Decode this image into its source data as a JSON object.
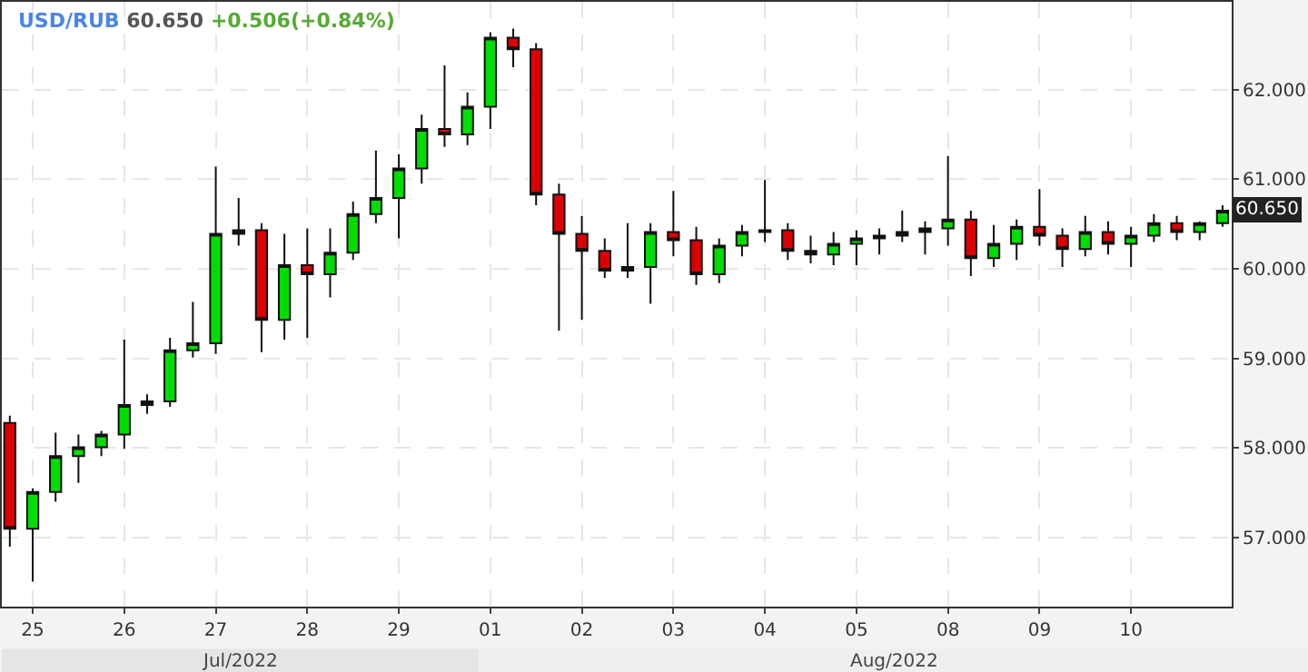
{
  "chart_data": {
    "type": "candlestick",
    "title": "USD/RUB 60.650 +0.506(+0.84%)",
    "categories": [
      null,
      "25",
      null,
      null,
      null,
      "26",
      null,
      null,
      null,
      "27",
      null,
      null,
      null,
      "28",
      null,
      null,
      null,
      "29",
      null,
      null,
      null,
      "01",
      null,
      null,
      null,
      "02",
      null,
      null,
      null,
      "03",
      null,
      null,
      null,
      "04",
      null,
      null,
      null,
      "05",
      null,
      null,
      null,
      "08",
      null,
      null,
      null,
      "09",
      null,
      null,
      null,
      "10",
      null,
      null,
      null,
      null
    ],
    "ohlc": [
      [
        58.28,
        58.36,
        56.9,
        57.1
      ],
      [
        57.1,
        57.55,
        56.51,
        57.51
      ],
      [
        57.51,
        58.17,
        57.4,
        57.91
      ],
      [
        57.91,
        58.15,
        57.61,
        58.01
      ],
      [
        58.01,
        58.19,
        57.91,
        58.15
      ],
      [
        58.15,
        59.21,
        57.99,
        58.48
      ],
      [
        58.48,
        58.6,
        58.38,
        58.52
      ],
      [
        58.52,
        59.23,
        58.46,
        59.09
      ],
      [
        59.09,
        59.63,
        59.01,
        59.17
      ],
      [
        59.17,
        61.14,
        59.05,
        60.39
      ],
      [
        60.39,
        60.79,
        60.26,
        60.43
      ],
      [
        60.43,
        60.51,
        59.07,
        59.43
      ],
      [
        59.43,
        60.39,
        59.21,
        60.04
      ],
      [
        60.04,
        60.45,
        59.23,
        59.94
      ],
      [
        59.94,
        60.45,
        59.68,
        60.18
      ],
      [
        60.18,
        60.75,
        60.1,
        60.61
      ],
      [
        60.61,
        61.32,
        60.51,
        60.79
      ],
      [
        60.79,
        61.28,
        60.34,
        61.12
      ],
      [
        61.12,
        61.72,
        60.95,
        61.56
      ],
      [
        61.56,
        62.27,
        61.36,
        61.5
      ],
      [
        61.5,
        61.97,
        61.38,
        61.81
      ],
      [
        61.81,
        62.64,
        61.56,
        62.58
      ],
      [
        62.58,
        62.68,
        62.25,
        62.45
      ],
      [
        62.45,
        62.52,
        60.71,
        60.83
      ],
      [
        60.83,
        60.95,
        59.31,
        60.39
      ],
      [
        60.39,
        60.59,
        59.43,
        60.2
      ],
      [
        60.2,
        60.34,
        59.9,
        59.98
      ],
      [
        59.98,
        60.51,
        59.9,
        60.02
      ],
      [
        60.02,
        60.51,
        59.61,
        60.41
      ],
      [
        60.41,
        60.87,
        60.14,
        60.32
      ],
      [
        60.32,
        60.47,
        59.82,
        59.94
      ],
      [
        59.94,
        60.34,
        59.84,
        60.26
      ],
      [
        60.26,
        60.49,
        60.14,
        60.41
      ],
      [
        60.41,
        60.99,
        60.3,
        60.43
      ],
      [
        60.43,
        60.51,
        60.1,
        60.2
      ],
      [
        60.2,
        60.37,
        60.06,
        60.16
      ],
      [
        60.16,
        60.41,
        60.04,
        60.28
      ],
      [
        60.28,
        60.43,
        60.04,
        60.34
      ],
      [
        60.34,
        60.45,
        60.16,
        60.37
      ],
      [
        60.37,
        60.65,
        60.3,
        60.41
      ],
      [
        60.41,
        60.53,
        60.16,
        60.45
      ],
      [
        60.45,
        61.26,
        60.26,
        60.55
      ],
      [
        60.55,
        60.65,
        59.92,
        60.12
      ],
      [
        60.12,
        60.49,
        60.02,
        60.28
      ],
      [
        60.28,
        60.55,
        60.1,
        60.47
      ],
      [
        60.47,
        60.89,
        60.26,
        60.37
      ],
      [
        60.37,
        60.45,
        60.02,
        60.22
      ],
      [
        60.22,
        60.59,
        60.14,
        60.41
      ],
      [
        60.41,
        60.53,
        60.16,
        60.28
      ],
      [
        60.28,
        60.47,
        60.02,
        60.37
      ],
      [
        60.37,
        60.61,
        60.3,
        60.51
      ],
      [
        60.51,
        60.59,
        60.32,
        60.41
      ],
      [
        60.41,
        60.53,
        60.32,
        60.51
      ],
      [
        60.51,
        60.71,
        60.47,
        60.65
      ]
    ],
    "ylim": [
      56.23,
      62.98
    ],
    "yticks": [
      {
        "value": 57,
        "label": "57.000"
      },
      {
        "value": 58,
        "label": "58.000"
      },
      {
        "value": 59,
        "label": "59.000"
      },
      {
        "value": 60,
        "label": "60.000"
      },
      {
        "value": 61,
        "label": "61.000"
      },
      {
        "value": 62,
        "label": "62.000"
      }
    ],
    "annotations": [
      "Jul/2022",
      "Aug/2022",
      {
        "text": "60.650",
        "y": 60.65
      }
    ],
    "grid": true
  }
}
